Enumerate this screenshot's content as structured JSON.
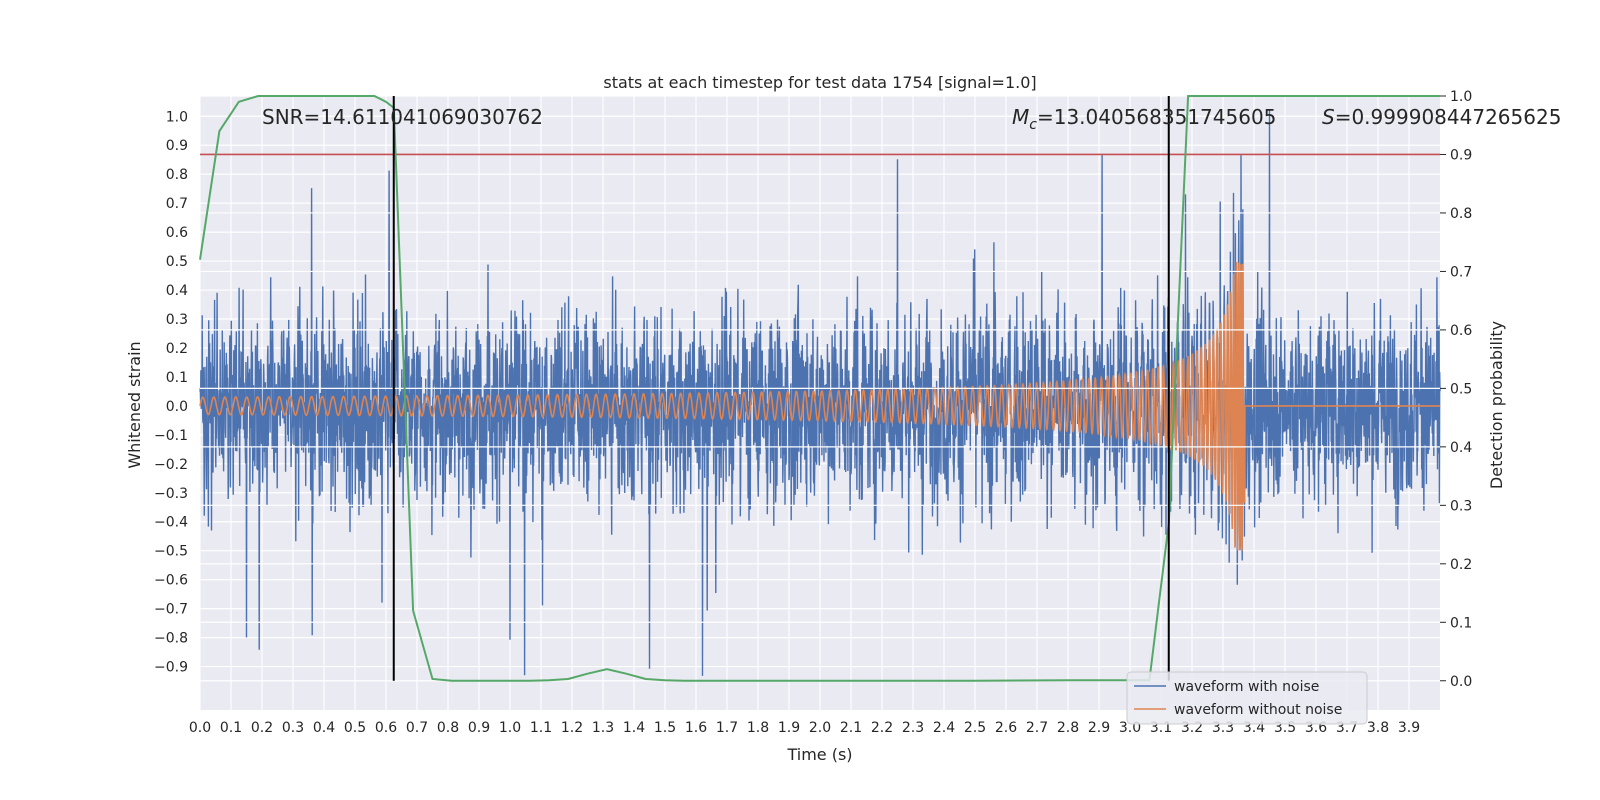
{
  "chart_data": {
    "type": "line",
    "title": "stats at each timestep for test data 1754 [signal=1.0]",
    "xlabel": "Time (s)",
    "ylabel": "Whitened strain",
    "ylabel_right": "Detection probability",
    "xlim": [
      0.0,
      4.0
    ],
    "ylim": [
      -1.05,
      1.07
    ],
    "ylim_right": [
      -0.05,
      1.0
    ],
    "x_ticks": [
      "0.0",
      "0.1",
      "0.2",
      "0.3",
      "0.4",
      "0.5",
      "0.6",
      "0.7",
      "0.8",
      "0.9",
      "1.0",
      "1.1",
      "1.2",
      "1.3",
      "1.4",
      "1.5",
      "1.6",
      "1.7",
      "1.8",
      "1.9",
      "2.0",
      "2.1",
      "2.2",
      "2.3",
      "2.4",
      "2.5",
      "2.6",
      "2.7",
      "2.8",
      "2.9",
      "3.0",
      "3.1",
      "3.2",
      "3.3",
      "3.4",
      "3.5",
      "3.6",
      "3.7",
      "3.8",
      "3.9"
    ],
    "y_ticks": [
      "1.0",
      "0.9",
      "0.8",
      "0.7",
      "0.6",
      "0.5",
      "0.4",
      "0.3",
      "0.2",
      "0.1",
      "0.0",
      "−0.1",
      "−0.2",
      "−0.3",
      "−0.4",
      "−0.5",
      "−0.6",
      "−0.7",
      "−0.8",
      "−0.9"
    ],
    "y_ticks_right": [
      "1.0",
      "0.9",
      "0.8",
      "0.7",
      "0.6",
      "0.5",
      "0.4",
      "0.3",
      "0.2",
      "0.1",
      "0.0"
    ],
    "annotations": {
      "snr": "SNR=14.611041069030762",
      "mc_symbol": "M",
      "mc_sub": "c",
      "mc_value": "=13.040568351745605",
      "s_symbol": "S",
      "s_value": "=0.999908447265625"
    },
    "legend": {
      "placement": "lower-right",
      "entries": [
        "waveform with noise",
        "waveform without noise"
      ]
    },
    "colors": {
      "noise": "#4c72b0",
      "clean": "#dd8452",
      "prob": "#55a868",
      "threshold": "#c44e52",
      "marker": "#000000",
      "background": "#eaeaf2",
      "grid": "#ffffff"
    },
    "threshold_probability": 0.9,
    "marker_times": [
      0.625,
      3.125
    ],
    "waveform_with_noise_peaks": [
      {
        "t": 0.15,
        "v": -0.83
      },
      {
        "t": 0.36,
        "v": 0.72
      },
      {
        "t": 0.61,
        "v": 0.83
      },
      {
        "t": 1.0,
        "v": -0.82
      },
      {
        "t": 1.45,
        "v": -0.88
      },
      {
        "t": 2.25,
        "v": 0.84
      },
      {
        "t": 2.91,
        "v": 0.8
      },
      {
        "t": 3.34,
        "v": 0.95
      },
      {
        "t": 3.45,
        "v": 1.02
      }
    ],
    "waveform_without_noise": {
      "amplitude_start": 0.03,
      "peak_amplitude": 0.5,
      "peak_time": 3.355,
      "merger_time": 3.37
    },
    "series": [
      {
        "name": "detection probability",
        "axis": "right",
        "x": [
          0.0,
          0.0625,
          0.125,
          0.1875,
          0.25,
          0.3125,
          0.375,
          0.4375,
          0.5,
          0.5625,
          0.6,
          0.625,
          0.6875,
          0.75,
          0.8125,
          0.875,
          0.9375,
          1.0,
          1.0625,
          1.125,
          1.1875,
          1.25,
          1.3125,
          1.375,
          1.4375,
          1.5,
          1.5625,
          1.625,
          2.0,
          2.5,
          2.8,
          3.0,
          3.0625,
          3.125,
          3.1875,
          3.25,
          3.5,
          3.75,
          4.0
        ],
        "y": [
          0.72,
          0.94,
          0.99,
          1.0,
          1.0,
          1.0,
          1.0,
          1.0,
          1.0,
          1.0,
          0.99,
          0.98,
          0.12,
          0.003,
          0.0,
          0.0,
          0.0,
          0.0,
          0.0,
          0.001,
          0.003,
          0.012,
          0.02,
          0.012,
          0.003,
          0.001,
          0.0,
          0.0,
          0.0,
          0.0,
          0.001,
          0.001,
          0.001,
          0.27,
          1.0,
          1.0,
          1.0,
          1.0,
          1.0
        ]
      }
    ]
  }
}
